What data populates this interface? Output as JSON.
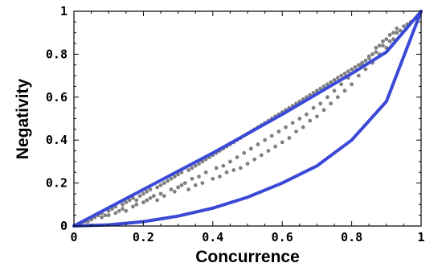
{
  "chart_data": {
    "type": "scatter",
    "title": "",
    "xlabel": "Concurrence",
    "ylabel": "Negativity",
    "xlim": [
      0,
      1
    ],
    "ylim": [
      0,
      1
    ],
    "grid": false,
    "x_ticks": [
      "0",
      "0.2",
      "0.4",
      "0.6",
      "0.8",
      "1"
    ],
    "y_ticks": [
      "0",
      "0.2",
      "0.4",
      "0.6",
      "0.8",
      "1"
    ],
    "boundary_curves": [
      {
        "description": "upper bound",
        "x": [
          0,
          0.1,
          0.2,
          0.3,
          0.4,
          0.5,
          0.6,
          0.7,
          0.8,
          0.9,
          1.0
        ],
        "y": [
          0,
          0.085,
          0.17,
          0.255,
          0.34,
          0.43,
          0.52,
          0.615,
          0.71,
          0.81,
          1.0
        ],
        "color": "#3a49d6"
      },
      {
        "description": "lower bound",
        "x": [
          0,
          0.1,
          0.2,
          0.3,
          0.4,
          0.5,
          0.6,
          0.7,
          0.8,
          0.9,
          1.0
        ],
        "y": [
          0,
          0.005,
          0.02,
          0.046,
          0.083,
          0.134,
          0.2,
          0.28,
          0.4,
          0.58,
          1.0
        ],
        "color": "#3a49d6"
      }
    ],
    "points": {
      "color": "#808080",
      "x": [
        0.02,
        0.03,
        0.04,
        0.05,
        0.05,
        0.06,
        0.07,
        0.08,
        0.08,
        0.09,
        0.1,
        0.1,
        0.11,
        0.12,
        0.12,
        0.13,
        0.14,
        0.14,
        0.15,
        0.15,
        0.16,
        0.17,
        0.17,
        0.18,
        0.18,
        0.19,
        0.2,
        0.2,
        0.21,
        0.21,
        0.22,
        0.22,
        0.23,
        0.24,
        0.24,
        0.25,
        0.25,
        0.26,
        0.26,
        0.27,
        0.28,
        0.28,
        0.29,
        0.29,
        0.3,
        0.3,
        0.31,
        0.31,
        0.32,
        0.33,
        0.33,
        0.34,
        0.34,
        0.35,
        0.35,
        0.36,
        0.36,
        0.37,
        0.37,
        0.38,
        0.38,
        0.39,
        0.4,
        0.4,
        0.41,
        0.41,
        0.42,
        0.42,
        0.43,
        0.43,
        0.44,
        0.44,
        0.45,
        0.45,
        0.46,
        0.46,
        0.47,
        0.47,
        0.48,
        0.48,
        0.49,
        0.49,
        0.5,
        0.5,
        0.51,
        0.51,
        0.52,
        0.52,
        0.53,
        0.53,
        0.54,
        0.54,
        0.55,
        0.55,
        0.56,
        0.56,
        0.57,
        0.57,
        0.58,
        0.58,
        0.59,
        0.59,
        0.6,
        0.6,
        0.61,
        0.61,
        0.62,
        0.62,
        0.63,
        0.63,
        0.64,
        0.64,
        0.65,
        0.65,
        0.66,
        0.66,
        0.67,
        0.67,
        0.68,
        0.68,
        0.69,
        0.69,
        0.7,
        0.7,
        0.71,
        0.71,
        0.72,
        0.72,
        0.73,
        0.73,
        0.74,
        0.74,
        0.75,
        0.75,
        0.76,
        0.76,
        0.77,
        0.77,
        0.78,
        0.78,
        0.79,
        0.79,
        0.8,
        0.8,
        0.81,
        0.81,
        0.82,
        0.82,
        0.83,
        0.83,
        0.84,
        0.84,
        0.85,
        0.85,
        0.86,
        0.86,
        0.87,
        0.87,
        0.88,
        0.88,
        0.89,
        0.89,
        0.9,
        0.9,
        0.91,
        0.91,
        0.92,
        0.92,
        0.93,
        0.93,
        0.94,
        0.95,
        0.96,
        0.97
      ],
      "y": [
        0.01,
        0.02,
        0.02,
        0.03,
        0.04,
        0.04,
        0.05,
        0.04,
        0.06,
        0.05,
        0.07,
        0.05,
        0.08,
        0.06,
        0.09,
        0.07,
        0.1,
        0.08,
        0.11,
        0.07,
        0.12,
        0.09,
        0.13,
        0.1,
        0.12,
        0.14,
        0.11,
        0.15,
        0.12,
        0.16,
        0.13,
        0.17,
        0.14,
        0.18,
        0.12,
        0.19,
        0.15,
        0.2,
        0.14,
        0.21,
        0.17,
        0.22,
        0.16,
        0.23,
        0.18,
        0.24,
        0.19,
        0.25,
        0.2,
        0.26,
        0.17,
        0.27,
        0.22,
        0.28,
        0.19,
        0.29,
        0.23,
        0.3,
        0.2,
        0.31,
        0.25,
        0.32,
        0.22,
        0.33,
        0.27,
        0.34,
        0.23,
        0.35,
        0.28,
        0.36,
        0.25,
        0.37,
        0.3,
        0.38,
        0.26,
        0.39,
        0.32,
        0.4,
        0.27,
        0.41,
        0.34,
        0.42,
        0.29,
        0.43,
        0.36,
        0.44,
        0.31,
        0.45,
        0.38,
        0.46,
        0.33,
        0.47,
        0.4,
        0.48,
        0.35,
        0.49,
        0.42,
        0.5,
        0.37,
        0.51,
        0.44,
        0.52,
        0.39,
        0.53,
        0.46,
        0.54,
        0.41,
        0.55,
        0.48,
        0.56,
        0.44,
        0.57,
        0.5,
        0.58,
        0.46,
        0.59,
        0.52,
        0.6,
        0.49,
        0.61,
        0.55,
        0.62,
        0.51,
        0.63,
        0.57,
        0.64,
        0.54,
        0.65,
        0.6,
        0.66,
        0.57,
        0.67,
        0.63,
        0.68,
        0.6,
        0.69,
        0.66,
        0.7,
        0.63,
        0.71,
        0.69,
        0.72,
        0.66,
        0.73,
        0.72,
        0.74,
        0.7,
        0.75,
        0.75,
        0.76,
        0.73,
        0.77,
        0.78,
        0.79,
        0.76,
        0.8,
        0.81,
        0.83,
        0.8,
        0.84,
        0.84,
        0.86,
        0.83,
        0.87,
        0.86,
        0.89,
        0.87,
        0.9,
        0.9,
        0.92,
        0.91,
        0.93,
        0.94,
        0.95
      ]
    }
  }
}
